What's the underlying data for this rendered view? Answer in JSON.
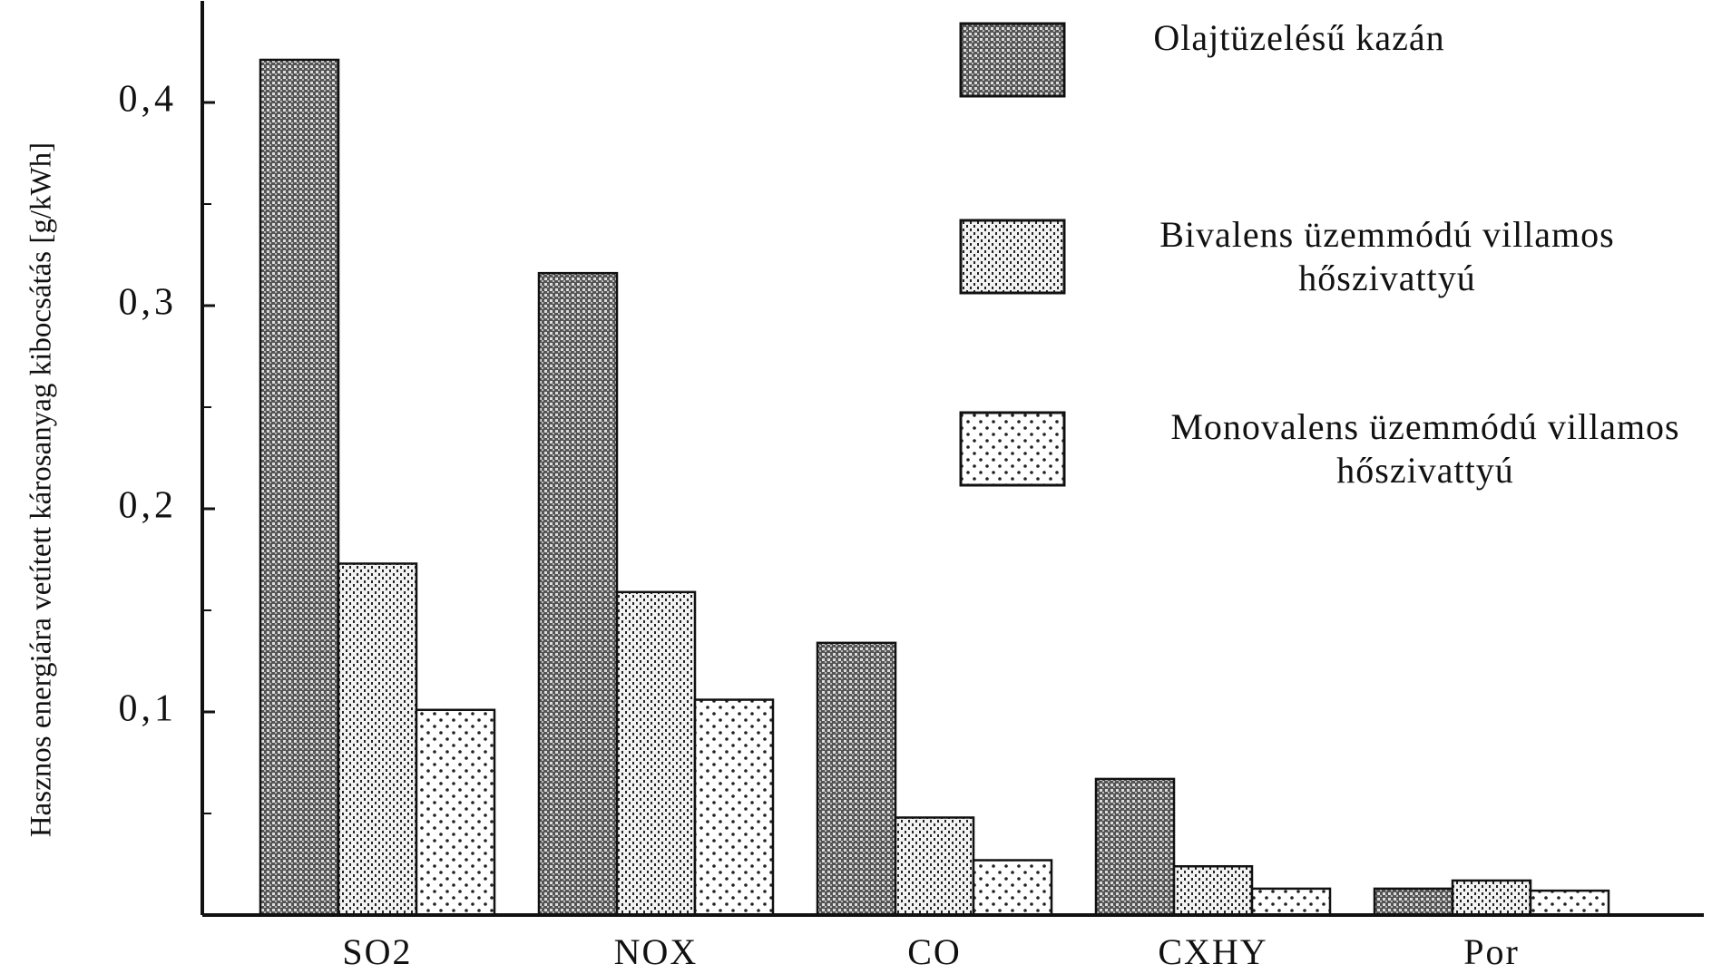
{
  "chart_data": {
    "type": "bar",
    "y_label": "Hasznos energiára vetített károsanyag kibocsátás [g/kWh]",
    "categories": [
      "SO2",
      "NOX",
      "CO",
      "CXHY",
      "Por"
    ],
    "series": [
      {
        "name": "Olajtüzelésű kazán",
        "color": "#333333",
        "values": [
          0.421,
          0.316,
          0.134,
          0.067,
          0.013
        ]
      },
      {
        "name": "Bivalens üzemmódú villamos hőszivattyú",
        "color": "#777777",
        "values": [
          0.173,
          0.159,
          0.048,
          0.024,
          0.017
        ]
      },
      {
        "name": "Monovalens üzemmódú villamos hőszivattyú",
        "color": "#bbbbbb",
        "values": [
          0.101,
          0.106,
          0.027,
          0.013,
          0.012
        ]
      }
    ],
    "ylim": [
      0,
      0.45
    ],
    "yticks": [
      {
        "value": 0.1,
        "label": "0,1"
      },
      {
        "value": 0.2,
        "label": "0,2"
      },
      {
        "value": 0.3,
        "label": "0,3"
      },
      {
        "value": 0.4,
        "label": "0,4"
      }
    ],
    "minor_yticks": [
      0.05,
      0.15,
      0.25,
      0.35
    ],
    "legend": "top-right"
  }
}
